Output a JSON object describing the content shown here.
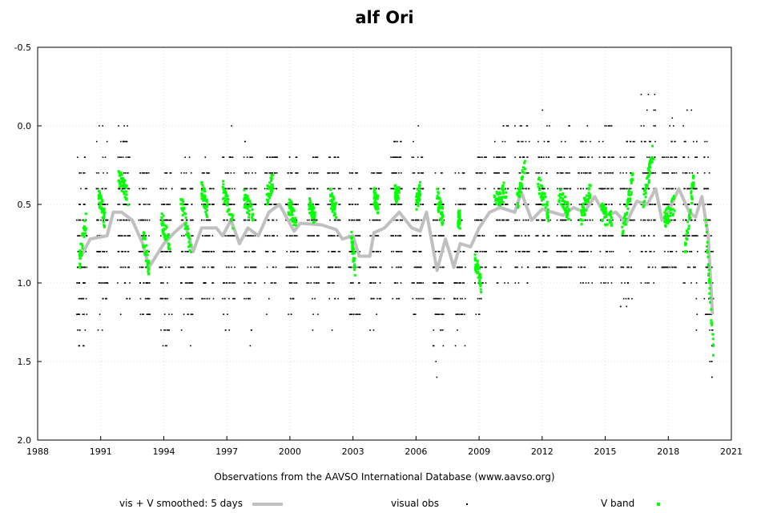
{
  "chart_data": {
    "type": "scatter",
    "title": "alf Ori",
    "xlabel": "Observations from the AAVSO International Database (www.aavso.org)",
    "ylabel": "",
    "xlim": [
      1988,
      2021
    ],
    "ylim": [
      -0.5,
      2.0
    ],
    "y_inverted": true,
    "grid": true,
    "x_ticks": [
      "1988",
      "1991",
      "1994",
      "1997",
      "2000",
      "2003",
      "2006",
      "2009",
      "2012",
      "2015",
      "2018",
      "2021"
    ],
    "y_ticks": [
      "-0.5",
      "0.0",
      "0.5",
      "1.0",
      "1.5",
      "2.0"
    ],
    "legend_placement": "bottom",
    "legend": {
      "smoothed": "vis + V smoothed: 5 days",
      "visual": "visual obs",
      "vband": "V band"
    },
    "colors": {
      "smoothed": "#c0c0c0",
      "visual": "#000000",
      "vband": "#00ff00"
    },
    "series": [
      {
        "name": "vis + V smoothed: 5 days",
        "type": "line",
        "points": [
          [
            1990.0,
            0.85
          ],
          [
            1990.5,
            0.72
          ],
          [
            1991.3,
            0.7
          ],
          [
            1991.6,
            0.55
          ],
          [
            1992.0,
            0.55
          ],
          [
            1992.5,
            0.6
          ],
          [
            1993.0,
            0.75
          ],
          [
            1993.3,
            0.9
          ],
          [
            1994.0,
            0.75
          ],
          [
            1994.5,
            0.68
          ],
          [
            1995.0,
            0.62
          ],
          [
            1995.4,
            0.8
          ],
          [
            1995.8,
            0.65
          ],
          [
            1996.5,
            0.65
          ],
          [
            1996.8,
            0.7
          ],
          [
            1997.2,
            0.6
          ],
          [
            1997.6,
            0.75
          ],
          [
            1998.0,
            0.65
          ],
          [
            1998.5,
            0.7
          ],
          [
            1999.0,
            0.55
          ],
          [
            1999.5,
            0.5
          ],
          [
            2000.2,
            0.67
          ],
          [
            2000.5,
            0.62
          ],
          [
            2001.5,
            0.63
          ],
          [
            2002.2,
            0.66
          ],
          [
            2002.5,
            0.72
          ],
          [
            2003.0,
            0.7
          ],
          [
            2003.3,
            0.83
          ],
          [
            2003.8,
            0.83
          ],
          [
            2004.0,
            0.68
          ],
          [
            2004.5,
            0.65
          ],
          [
            2005.2,
            0.55
          ],
          [
            2005.8,
            0.65
          ],
          [
            2006.2,
            0.67
          ],
          [
            2006.5,
            0.55
          ],
          [
            2007.0,
            0.92
          ],
          [
            2007.4,
            0.72
          ],
          [
            2007.8,
            0.9
          ],
          [
            2008.1,
            0.75
          ],
          [
            2008.6,
            0.77
          ],
          [
            2009.0,
            0.65
          ],
          [
            2009.5,
            0.55
          ],
          [
            2010.0,
            0.52
          ],
          [
            2010.7,
            0.55
          ],
          [
            2011.0,
            0.42
          ],
          [
            2011.5,
            0.6
          ],
          [
            2012.0,
            0.53
          ],
          [
            2012.5,
            0.55
          ],
          [
            2013.0,
            0.57
          ],
          [
            2013.5,
            0.52
          ],
          [
            2014.0,
            0.55
          ],
          [
            2014.5,
            0.45
          ],
          [
            2015.0,
            0.57
          ],
          [
            2015.5,
            0.55
          ],
          [
            2016.0,
            0.62
          ],
          [
            2016.5,
            0.48
          ],
          [
            2017.0,
            0.5
          ],
          [
            2017.4,
            0.4
          ],
          [
            2017.7,
            0.6
          ],
          [
            2018.0,
            0.55
          ],
          [
            2018.5,
            0.4
          ],
          [
            2019.0,
            0.55
          ],
          [
            2019.3,
            0.58
          ],
          [
            2019.6,
            0.45
          ],
          [
            2019.9,
            0.7
          ],
          [
            2020.1,
            1.2
          ]
        ]
      },
      {
        "name": "visual obs",
        "type": "scatter-seasons",
        "note_units": "season [start_year, end_year, bright_mag, faint_mag], magnitudes quantized to 0.1",
        "seasons": [
          [
            1989.85,
            1990.35,
            0.2,
            1.4
          ],
          [
            1990.8,
            1991.35,
            0.0,
            1.3
          ],
          [
            1991.8,
            1992.4,
            0.0,
            1.2
          ],
          [
            1992.8,
            1993.35,
            0.3,
            1.2
          ],
          [
            1993.8,
            1994.4,
            0.3,
            1.4
          ],
          [
            1994.8,
            1995.4,
            0.0,
            1.5
          ],
          [
            1995.8,
            1996.4,
            0.1,
            1.1
          ],
          [
            1996.8,
            1997.4,
            0.0,
            1.4
          ],
          [
            1997.8,
            1998.4,
            0.1,
            1.6
          ],
          [
            1998.8,
            1999.4,
            0.2,
            1.3
          ],
          [
            1999.8,
            2000.4,
            0.2,
            1.3
          ],
          [
            2000.8,
            2001.4,
            0.2,
            1.3
          ],
          [
            2001.8,
            2002.4,
            0.2,
            1.3
          ],
          [
            2002.8,
            2003.35,
            0.3,
            1.2
          ],
          [
            2003.8,
            2004.35,
            0.3,
            1.3
          ],
          [
            2004.8,
            2005.35,
            0.1,
            1.3
          ],
          [
            2005.8,
            2006.35,
            0.0,
            1.3
          ],
          [
            2006.8,
            2007.35,
            0.3,
            1.7
          ],
          [
            2007.8,
            2008.35,
            0.3,
            1.4
          ],
          [
            2008.8,
            2009.35,
            0.2,
            1.4
          ],
          [
            2009.7,
            2010.4,
            0.0,
            1.0
          ],
          [
            2010.7,
            2011.4,
            -0.1,
            1.0
          ],
          [
            2011.7,
            2012.4,
            -0.3,
            0.9
          ],
          [
            2012.7,
            2013.4,
            0.0,
            0.9
          ],
          [
            2013.7,
            2014.4,
            0.0,
            1.0
          ],
          [
            2014.7,
            2015.4,
            0.0,
            1.0
          ],
          [
            2015.7,
            2016.4,
            0.1,
            1.15
          ],
          [
            2016.7,
            2017.4,
            -0.2,
            1.0
          ],
          [
            2017.7,
            2018.4,
            -0.05,
            0.9
          ],
          [
            2018.7,
            2019.4,
            -0.1,
            1.6
          ],
          [
            2019.7,
            2020.15,
            0.1,
            1.8
          ]
        ]
      },
      {
        "name": "V band",
        "type": "scatter-segments",
        "note_units": "[start_year, end_year, mag_start, mag_end]",
        "segments": [
          [
            1990.0,
            1990.3,
            0.85,
            0.6
          ],
          [
            1990.9,
            1991.2,
            0.45,
            0.6
          ],
          [
            1991.8,
            1992.3,
            0.3,
            0.45
          ],
          [
            1993.0,
            1993.3,
            0.7,
            0.9
          ],
          [
            1993.9,
            1994.3,
            0.6,
            0.75
          ],
          [
            1994.8,
            1995.3,
            0.45,
            0.8
          ],
          [
            1995.8,
            1996.1,
            0.4,
            0.55
          ],
          [
            1996.8,
            1997.3,
            0.4,
            0.6
          ],
          [
            1997.8,
            1998.3,
            0.45,
            0.6
          ],
          [
            1998.9,
            1999.2,
            0.45,
            0.35
          ],
          [
            1999.9,
            2000.3,
            0.5,
            0.6
          ],
          [
            2000.9,
            2001.2,
            0.5,
            0.6
          ],
          [
            2001.9,
            2002.2,
            0.45,
            0.55
          ],
          [
            2002.9,
            2003.1,
            0.7,
            0.9
          ],
          [
            2004.0,
            2004.2,
            0.45,
            0.5
          ],
          [
            2005.0,
            2005.2,
            0.42,
            0.45
          ],
          [
            2006.0,
            2006.2,
            0.5,
            0.4
          ],
          [
            2007.0,
            2007.3,
            0.45,
            0.6
          ],
          [
            2008.0,
            2008.1,
            0.6,
            0.6
          ],
          [
            2008.8,
            2009.1,
            0.85,
            1.0
          ],
          [
            2009.7,
            2010.3,
            0.5,
            0.4
          ],
          [
            2010.8,
            2011.2,
            0.5,
            0.25
          ],
          [
            2011.8,
            2012.3,
            0.35,
            0.55
          ],
          [
            2012.8,
            2013.3,
            0.45,
            0.55
          ],
          [
            2013.8,
            2014.3,
            0.6,
            0.4
          ],
          [
            2014.8,
            2015.3,
            0.55,
            0.6
          ],
          [
            2015.8,
            2016.3,
            0.7,
            0.35
          ],
          [
            2016.8,
            2017.3,
            0.5,
            0.15
          ],
          [
            2017.8,
            2018.3,
            0.6,
            0.5
          ],
          [
            2018.8,
            2019.2,
            0.8,
            0.35
          ],
          [
            2019.8,
            2020.15,
            0.65,
            1.45
          ]
        ]
      }
    ]
  }
}
